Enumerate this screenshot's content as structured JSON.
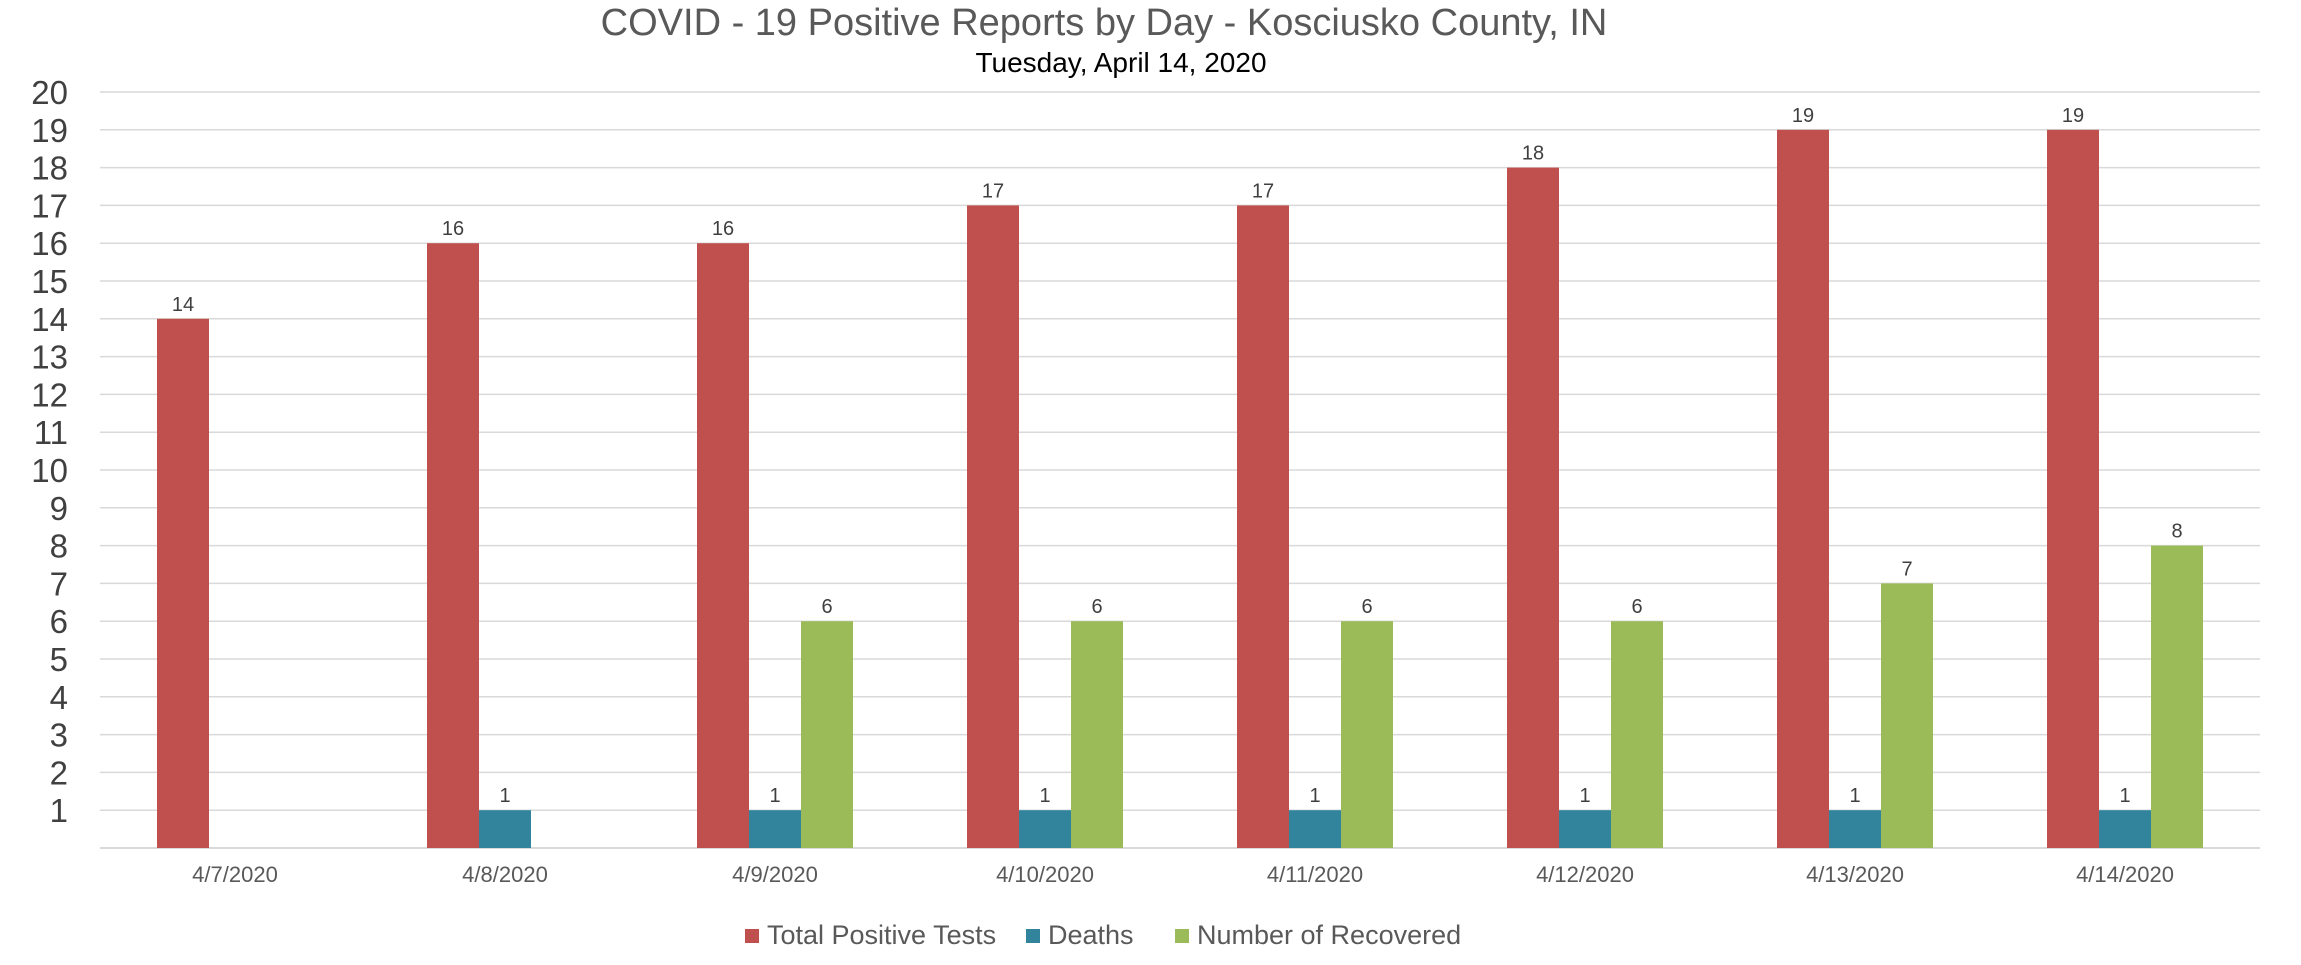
{
  "chart_data": {
    "type": "bar",
    "title": "COVID - 19 Positive Reports by Day - Kosciusko County, IN",
    "subtitle": "Tuesday, April 14, 2020",
    "categories": [
      "4/7/2020",
      "4/8/2020",
      "4/9/2020",
      "4/10/2020",
      "4/11/2020",
      "4/12/2020",
      "4/13/2020",
      "4/14/2020"
    ],
    "series": [
      {
        "name": "Total Positive Tests",
        "color": "#c0504d",
        "values": [
          14,
          16,
          16,
          17,
          17,
          18,
          19,
          19
        ]
      },
      {
        "name": "Deaths",
        "color": "#31849b",
        "values": [
          null,
          1,
          1,
          1,
          1,
          1,
          1,
          1
        ]
      },
      {
        "name": "Number of Recovered",
        "color": "#9bbb59",
        "values": [
          null,
          null,
          6,
          6,
          6,
          6,
          7,
          8
        ]
      }
    ],
    "ylim": [
      0,
      20
    ],
    "yticks": [
      1,
      2,
      3,
      4,
      5,
      6,
      7,
      8,
      9,
      10,
      11,
      12,
      13,
      14,
      15,
      16,
      17,
      18,
      19,
      20
    ],
    "grid": true,
    "legend_position": "bottom"
  }
}
